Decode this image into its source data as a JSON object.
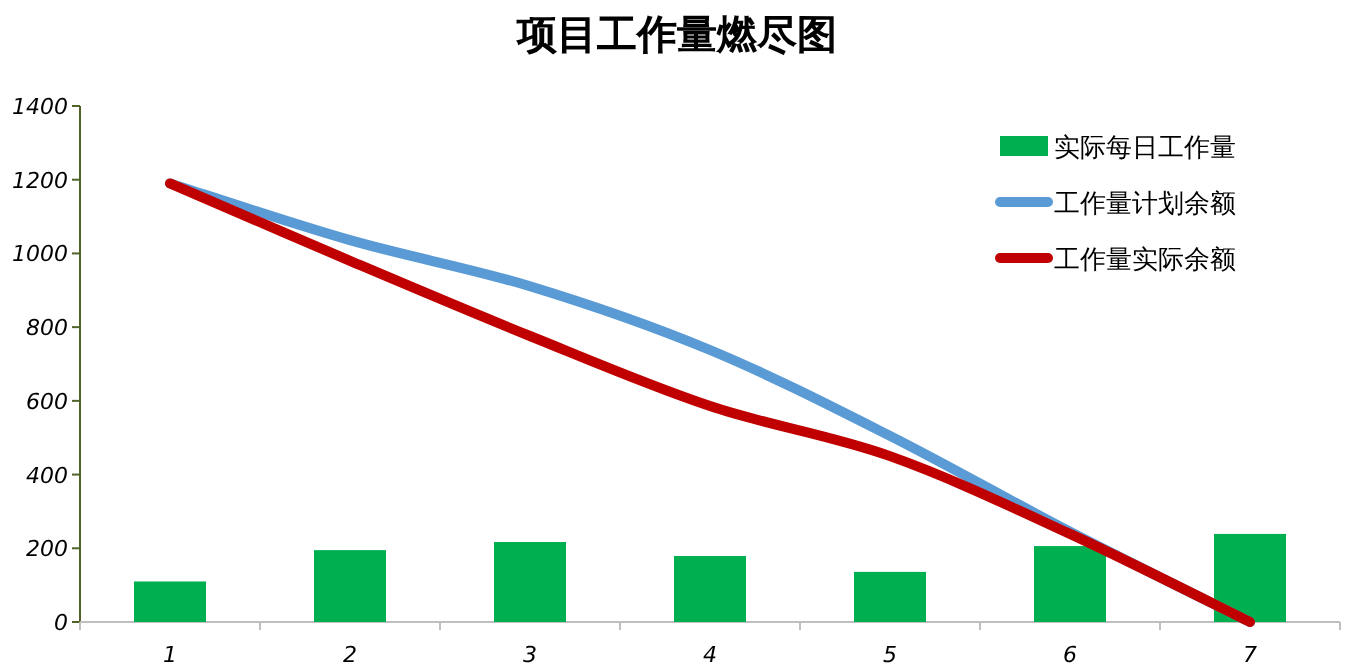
{
  "chart_data": {
    "type": "bar",
    "title": "项目工作量燃尽图",
    "categories": [
      "1",
      "2",
      "3",
      "4",
      "5",
      "6",
      "7"
    ],
    "ylim": [
      0,
      1400
    ],
    "yticks": [
      0,
      200,
      400,
      600,
      800,
      1000,
      1200,
      1400
    ],
    "grid": false,
    "legend": "top right",
    "series": [
      {
        "name": "实际每日工作量",
        "color": "#00b050",
        "values": [
          110,
          195,
          217,
          179,
          136,
          206,
          239
        ]
      },
      {
        "name": "工作量计划余额",
        "type": "line",
        "color": "#5b9bd5",
        "values": [
          1190,
          1036,
          911,
          738,
          505,
          245,
          0
        ]
      },
      {
        "name": "工作量实际余额",
        "type": "line",
        "color": "#c00000",
        "values": [
          1190,
          980,
          776,
          586,
          450,
          239,
          0
        ]
      }
    ]
  }
}
